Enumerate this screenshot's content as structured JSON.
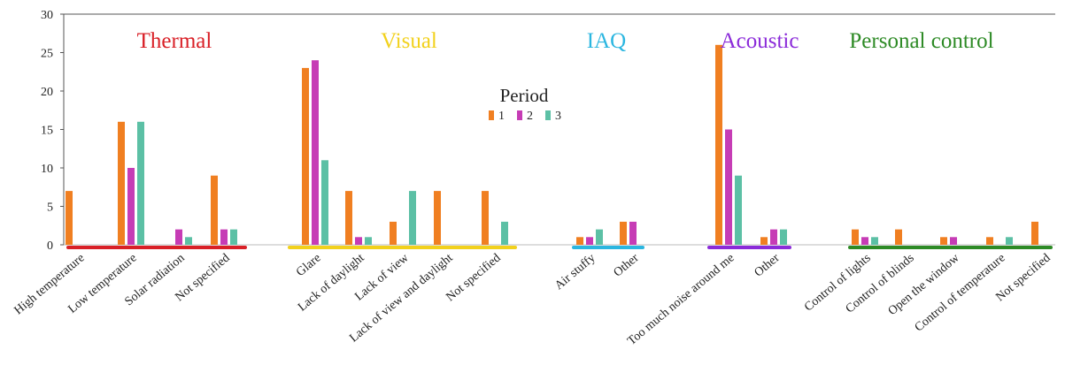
{
  "chart_data": {
    "type": "bar",
    "ylim": [
      0,
      30
    ],
    "yticks": [
      0,
      5,
      10,
      15,
      20,
      25,
      30
    ],
    "grid": false,
    "legend": {
      "title": "Period",
      "placement": "top-center",
      "entries": [
        "1",
        "2",
        "3"
      ]
    },
    "series": [
      {
        "name": "1",
        "color": "#F07F21"
      },
      {
        "name": "2",
        "color": "#C63CB5"
      },
      {
        "name": "3",
        "color": "#5CC0A5"
      }
    ],
    "groups": [
      {
        "title": "Thermal",
        "color": "#D92027",
        "categories": [
          {
            "label": "High temperature",
            "values": [
              7,
              0,
              0
            ]
          },
          {
            "label": "Low temperature",
            "values": [
              16,
              10,
              16
            ]
          },
          {
            "label": "Solar radiation",
            "values": [
              0,
              2,
              1
            ]
          },
          {
            "label": "Not specified",
            "values": [
              9,
              2,
              2
            ]
          }
        ]
      },
      {
        "title": "Visual",
        "color": "#F2D11C",
        "categories": [
          {
            "label": "Glare",
            "values": [
              23,
              24,
              11
            ]
          },
          {
            "label": "Lack of daylight",
            "values": [
              7,
              1,
              1
            ]
          },
          {
            "label": "Lack of view",
            "values": [
              3,
              0,
              7
            ]
          },
          {
            "label": "Lack of view and daylight",
            "values": [
              7,
              0,
              0
            ]
          },
          {
            "label": "Not specified",
            "values": [
              7,
              0,
              3
            ]
          }
        ]
      },
      {
        "title": "IAQ",
        "color": "#2BB6E0",
        "categories": [
          {
            "label": "Air stuffy",
            "values": [
              1,
              1,
              2
            ]
          },
          {
            "label": "Other",
            "values": [
              3,
              3,
              0
            ]
          }
        ]
      },
      {
        "title": "Acoustic",
        "color": "#8B2BD9",
        "categories": [
          {
            "label": "Too much noise around me",
            "values": [
              26,
              15,
              9
            ]
          },
          {
            "label": "Other",
            "values": [
              1,
              2,
              2
            ]
          }
        ]
      },
      {
        "title": "Personal control",
        "color": "#2D8A25",
        "categories": [
          {
            "label": "Control of lights",
            "values": [
              2,
              1,
              1
            ]
          },
          {
            "label": "Control of blinds",
            "values": [
              2,
              0,
              0
            ]
          },
          {
            "label": "Open the window",
            "values": [
              1,
              1,
              0
            ]
          },
          {
            "label": "Control of temperature",
            "values": [
              1,
              0,
              1
            ]
          },
          {
            "label": "Not specified",
            "values": [
              3,
              0,
              0
            ]
          }
        ]
      }
    ]
  }
}
